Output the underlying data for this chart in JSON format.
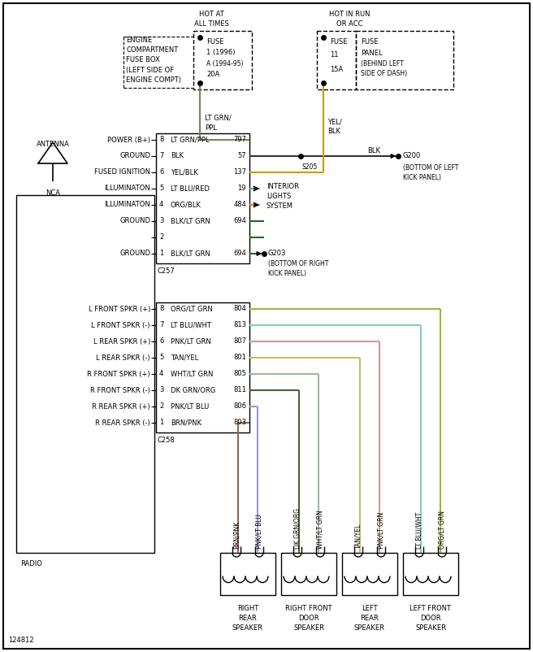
{
  "bg_color": "#ffffff",
  "border_color": "#000000",
  "fig_width": 6.56,
  "fig_height": 8.02,
  "connector_c257_pins": [
    {
      "pin": 8,
      "color": "LT GRN/PPL",
      "wire_color": "#808060",
      "number": "797",
      "label": "POWER (B+)"
    },
    {
      "pin": 7,
      "color": "BLK",
      "wire_color": "#333333",
      "number": "57",
      "label": "GROUND"
    },
    {
      "pin": 6,
      "color": "YEL/BLK",
      "wire_color": "#c8a000",
      "number": "137",
      "label": "FUSED IGNITION"
    },
    {
      "pin": 5,
      "color": "LT BLU/RED",
      "wire_color": "#6699bb",
      "number": "19",
      "label": "ILLUMINATON"
    },
    {
      "pin": 4,
      "color": "ORG/BLK",
      "wire_color": "#cc8800",
      "number": "484",
      "label": "ILLUMINATON"
    },
    {
      "pin": 3,
      "color": "BLK/LT GRN",
      "wire_color": "#226622",
      "number": "694",
      "label": "GROUND"
    },
    {
      "pin": 2,
      "color": "",
      "wire_color": "#226622",
      "number": "",
      "label": ""
    },
    {
      "pin": 1,
      "color": "BLK/LT GRN",
      "wire_color": "#226622",
      "number": "694",
      "label": "GROUND"
    }
  ],
  "connector_c258_pins": [
    {
      "pin": 8,
      "color": "ORG/LT GRN",
      "wire_color": "#99bb33",
      "number": "804",
      "label": "L FRONT SPKR (+)"
    },
    {
      "pin": 7,
      "color": "LT BLU/WHT",
      "wire_color": "#88cccc",
      "number": "813",
      "label": "L FRONT SPKR (-)"
    },
    {
      "pin": 6,
      "color": "PNK/LT GRN",
      "wire_color": "#cc9999",
      "number": "807",
      "label": "L REAR SPKR (+)"
    },
    {
      "pin": 5,
      "color": "TAN/YEL",
      "wire_color": "#ccbb66",
      "number": "801",
      "label": "L REAR SPKR (-)"
    },
    {
      "pin": 4,
      "color": "WHT/LT GRN",
      "wire_color": "#99bb99",
      "number": "805",
      "label": "R FRONT SPKR (+)"
    },
    {
      "pin": 3,
      "color": "DK GRN/ORG",
      "wire_color": "#446633",
      "number": "811",
      "label": "R FRONT SPKR (-)"
    },
    {
      "pin": 2,
      "color": "PNK/LT BLU",
      "wire_color": "#9999cc",
      "number": "806",
      "label": "R REAR SPKR (+)"
    },
    {
      "pin": 1,
      "color": "BRN/PNK",
      "wire_color": "#996644",
      "number": "803",
      "label": "R REAR SPKR (-)"
    }
  ],
  "speakers": [
    {
      "name": "RIGHT\nREAR\nSPEAKER",
      "wires": [
        "BRN/PNK",
        "PNK/LT BLU"
      ],
      "colors": [
        "#996644",
        "#9999cc"
      ]
    },
    {
      "name": "RIGHT FRONT\nDOOR\nSPEAKER",
      "wires": [
        "DK GRN/ORG",
        "WHT/LT GRN"
      ],
      "colors": [
        "#446633",
        "#99bb99"
      ]
    },
    {
      "name": "LEFT\nREAR\nSPEAKER",
      "wires": [
        "TAN/YEL",
        "PNK/LT GRN"
      ],
      "colors": [
        "#ccbb66",
        "#cc9999"
      ]
    },
    {
      "name": "LEFT FRONT\nDOOR\nSPEAKER",
      "wires": [
        "LT BLU/WHT",
        "ORG/LT GRN"
      ],
      "colors": [
        "#88cccc",
        "#99bb33"
      ]
    }
  ]
}
